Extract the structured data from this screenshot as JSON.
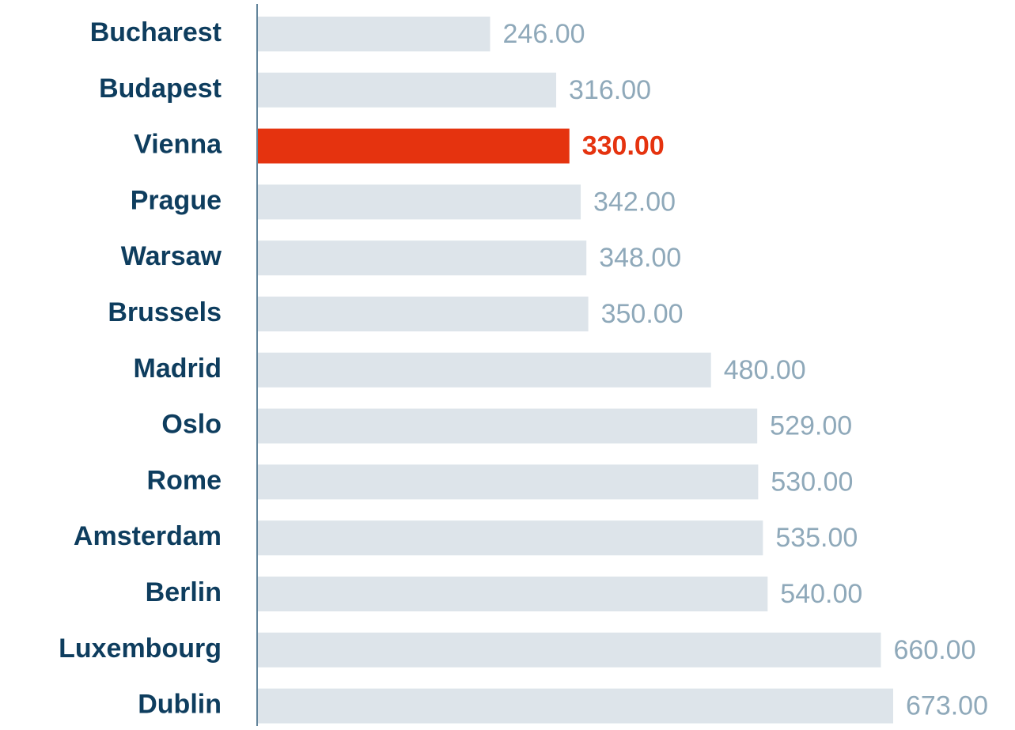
{
  "chart_data": {
    "type": "barh",
    "categories": [
      "Bucharest",
      "Budapest",
      "Vienna",
      "Prague",
      "Warsaw",
      "Brussels",
      "Madrid",
      "Oslo",
      "Rome",
      "Amsterdam",
      "Berlin",
      "Luxembourg",
      "Dublin"
    ],
    "values": [
      246,
      316,
      330,
      342,
      348,
      350,
      480,
      529,
      530,
      535,
      540,
      660,
      673
    ],
    "value_labels": [
      "246.00",
      "316.00",
      "330.00",
      "342.00",
      "348.00",
      "350.00",
      "480.00",
      "529.00",
      "530.00",
      "535.00",
      "540.00",
      "660.00",
      "673.00"
    ],
    "color": "#dde4ea",
    "label_color": "#8fa9ba",
    "highlight": "Vienna",
    "highlight_color": "#e5330f",
    "category_color": "#0e3d5e"
  }
}
